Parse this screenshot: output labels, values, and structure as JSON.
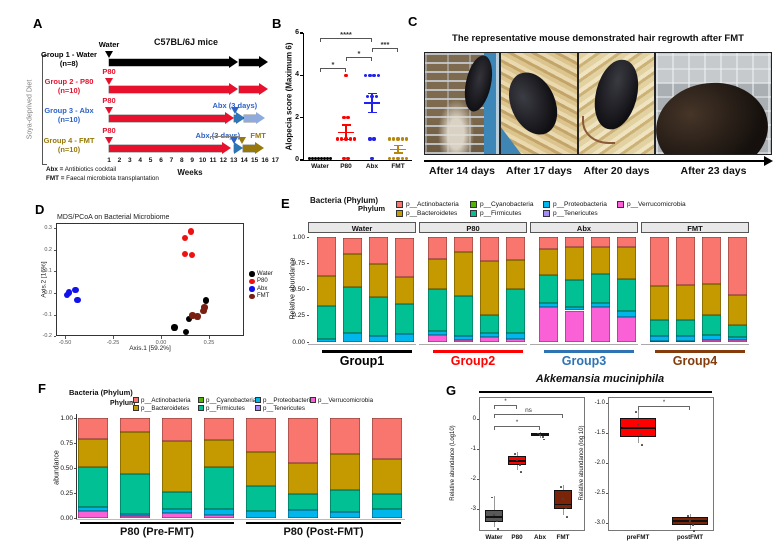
{
  "panels": {
    "A": {
      "label": "A",
      "side_label": "Soya-deprived Diet",
      "title": "C57BL/6J mice",
      "weeks_label": "Weeks",
      "weeks": [
        1,
        2,
        3,
        4,
        5,
        6,
        7,
        8,
        9,
        10,
        11,
        12,
        13,
        14,
        15,
        16,
        17
      ],
      "footnotes": [
        {
          "bold": "Abx =",
          "rest": " Antibiotics cocktail"
        },
        {
          "bold": "FMT =",
          "rest": " Faecal microbiota transplantation"
        }
      ],
      "groups": [
        {
          "name": "Group 1 - Water",
          "n": "(n=8)",
          "label_color": "#000000",
          "markers": [
            {
              "label": "Water",
              "color": "#000000",
              "week": 1,
              "label_dx": 0,
              "dy": -22
            }
          ],
          "arrows": [
            {
              "from": 1,
              "to": 13.2,
              "color": "#000000"
            },
            {
              "from": 13.5,
              "to": 16.1,
              "color": "#000000"
            }
          ]
        },
        {
          "name": "Group 2 - P80",
          "n": "(n=10)",
          "label_color": "#e8112d",
          "markers": [
            {
              "label": "P80",
              "color": "#e8112d",
              "week": 1,
              "label_dx": 0,
              "dy": -22
            }
          ],
          "arrows": [
            {
              "from": 1,
              "to": 13.2,
              "color": "#e8112d"
            },
            {
              "from": 13.5,
              "to": 16.1,
              "color": "#e8112d"
            }
          ]
        },
        {
          "name": "Group 3 - Abx",
          "n": "(n=10)",
          "label_color": "#2e63c6",
          "markers": [
            {
              "label": "P80",
              "color": "#e8112d",
              "week": 1,
              "label_dx": 0,
              "dy": -22
            },
            {
              "label": "Abx (3 days)",
              "color": "#2e63c6",
              "week": 13.1,
              "label_dx": 0,
              "dy": -17
            }
          ],
          "arrows": [
            {
              "from": 1,
              "to": 12.8,
              "color": "#e8112d"
            },
            {
              "from": 13.0,
              "to": 13.9,
              "color": "#2e75b6"
            },
            {
              "from": 14.0,
              "to": 15.8,
              "color": "#8faadc"
            }
          ]
        },
        {
          "name": "Group 4 - FMT",
          "n": "(n=10)",
          "label_color": "#97780a",
          "markers": [
            {
              "label": "P80",
              "color": "#e8112d",
              "week": 1,
              "label_dx": 0,
              "dy": -22
            },
            {
              "label": "Abx (3 days)",
              "color": "#2e63c6",
              "week": 13.0,
              "label_dx": -16,
              "dy": -17,
              "bracket": true
            },
            {
              "label": "FMT",
              "color": "#97780a",
              "week": 13.8,
              "label_dx": 16,
              "dy": -17
            }
          ],
          "arrows": [
            {
              "from": 1,
              "to": 12.5,
              "color": "#e8112d"
            },
            {
              "from": 13.0,
              "to": 13.7,
              "color": "#2e75b6"
            },
            {
              "from": 13.9,
              "to": 15.7,
              "color": "#97780a"
            }
          ]
        }
      ]
    },
    "B": {
      "label": "B"
    },
    "C": {
      "label": "C",
      "title": "The representative mouse demonstrated hair regrowth after FMT",
      "photos": [
        {
          "caption": "After 14 days"
        },
        {
          "caption": "After 17 days"
        },
        {
          "caption": "After 20 days"
        },
        {
          "caption": "After 23 days"
        }
      ]
    },
    "D": {
      "label": "D"
    },
    "E": {
      "label": "E",
      "title": "Bacteria (Phylum)"
    },
    "F": {
      "label": "F",
      "title": "Bacteria (Phylum)"
    },
    "G": {
      "label": "G"
    }
  },
  "chart_data": [
    {
      "panel": "B",
      "type": "scatter",
      "ylabel": "Alopecia score (Maximum 6)",
      "ylim": [
        0,
        6
      ],
      "yticks": [
        0,
        2,
        4,
        6
      ],
      "categories": [
        "Water",
        "P80",
        "Abx",
        "FMT"
      ],
      "colors": [
        "#000000",
        "#ff0000",
        "#2222ee",
        "#b8860b"
      ],
      "series": [
        {
          "name": "Water",
          "scores": [
            0,
            0,
            0,
            0,
            0,
            0,
            0,
            0
          ],
          "mean": 0.0,
          "sem": 0.0
        },
        {
          "name": "P80",
          "scores": [
            4,
            2,
            2,
            1,
            1,
            1,
            1,
            1,
            0,
            0
          ],
          "mean": 1.3,
          "sem": 0.35
        },
        {
          "name": "Abx",
          "scores": [
            4,
            4,
            4,
            4,
            3,
            3,
            3,
            1,
            1,
            0
          ],
          "mean": 2.7,
          "sem": 0.45
        },
        {
          "name": "FMT",
          "scores": [
            1,
            1,
            1,
            1,
            1,
            0,
            0,
            0,
            0,
            0
          ],
          "mean": 0.5,
          "sem": 0.17
        }
      ],
      "significance": [
        {
          "a": "Water",
          "b": "P80",
          "label": "*",
          "y": 4.35
        },
        {
          "a": "P80",
          "b": "Abx",
          "label": "*",
          "y": 4.85
        },
        {
          "a": "Abx",
          "b": "FMT",
          "label": "***",
          "y": 5.3
        },
        {
          "a": "Water",
          "b": "Abx",
          "label": "****",
          "y": 5.78
        }
      ]
    },
    {
      "panel": "D",
      "type": "scatter",
      "title": "MDS/PCoA on Bacterial Microbiome",
      "xlabel": "Axis.1   [59.2%]",
      "ylabel": "Axis.2   [16%]",
      "xticks": [
        -0.5,
        -0.25,
        0.0,
        0.25
      ],
      "yticks": [
        -0.2,
        -0.1,
        0.0,
        0.1,
        0.2,
        0.3
      ],
      "series": [
        {
          "name": "Water",
          "color": "#000000",
          "points": [
            [
              0.07,
              -0.16
            ],
            [
              0.13,
              -0.18
            ],
            [
              0.145,
              -0.12
            ],
            [
              0.235,
              -0.035
            ]
          ]
        },
        {
          "name": "P80",
          "color": "#ee1111",
          "points": [
            [
              0.125,
              0.255
            ],
            [
              0.155,
              0.285
            ],
            [
              0.125,
              0.18
            ],
            [
              0.16,
              0.175
            ]
          ]
        },
        {
          "name": "Abx",
          "color": "#1111ee",
          "points": [
            [
              -0.48,
              0.003
            ],
            [
              -0.49,
              -0.008
            ],
            [
              -0.445,
              0.015
            ],
            [
              -0.435,
              -0.032
            ]
          ]
        },
        {
          "name": "FMT",
          "color": "#7b1f13",
          "points": [
            [
              0.165,
              -0.105
            ],
            [
              0.19,
              -0.108
            ],
            [
              0.222,
              -0.082
            ],
            [
              0.227,
              -0.068
            ]
          ]
        }
      ]
    },
    {
      "panel": "E",
      "type": "stacked_bar",
      "title": "Bacteria (Phylum)",
      "legend_title": "Phylum",
      "ylabel": "Relative abundance",
      "yticks": [
        0.0,
        0.25,
        0.5,
        0.75,
        1.0
      ],
      "phyla": [
        {
          "name": "p__Actinobacteria",
          "color": "#F8766D"
        },
        {
          "name": "p__Bacteroidetes",
          "color": "#C49A00"
        },
        {
          "name": "p__Cyanobacteria",
          "color": "#53B400"
        },
        {
          "name": "p__Firmicutes",
          "color": "#00C094"
        },
        {
          "name": "p__Proteobacteria",
          "color": "#00B6EB"
        },
        {
          "name": "p__Tenericutes",
          "color": "#A58AFF"
        },
        {
          "name": "p__Verrucomicrobia",
          "color": "#FB61D7"
        }
      ],
      "stack_order": [
        "p__Verrucomicrobia",
        "p__Proteobacteria",
        "p__Firmicutes",
        "p__Bacteroidetes",
        "p__Actinobacteria"
      ],
      "facets": [
        {
          "name": "Water",
          "group": "Group1",
          "group_color": "#000000",
          "bars": [
            [
              0.0,
              0.025,
              0.32,
              0.28,
              0.375
            ],
            [
              0.0,
              0.085,
              0.44,
              0.31,
              0.155
            ],
            [
              0.0,
              0.055,
              0.37,
              0.315,
              0.26
            ],
            [
              0.0,
              0.075,
              0.29,
              0.255,
              0.37
            ]
          ]
        },
        {
          "name": "P80",
          "group": "Group2",
          "group_color": "#ff0000",
          "bars": [
            [
              0.07,
              0.035,
              0.4,
              0.29,
              0.205
            ],
            [
              0.015,
              0.045,
              0.38,
              0.415,
              0.145
            ],
            [
              0.045,
              0.04,
              0.17,
              0.52,
              0.225
            ],
            [
              0.03,
              0.055,
              0.42,
              0.28,
              0.215
            ]
          ]
        },
        {
          "name": "Abx",
          "group": "Group3",
          "group_color": "#2e74b5",
          "bars": [
            [
              0.335,
              0.035,
              0.27,
              0.245,
              0.115
            ],
            [
              0.3,
              0.035,
              0.255,
              0.315,
              0.095
            ],
            [
              0.335,
              0.04,
              0.275,
              0.255,
              0.095
            ],
            [
              0.235,
              0.06,
              0.305,
              0.305,
              0.095
            ]
          ]
        },
        {
          "name": "FMT",
          "group": "Group4",
          "group_color": "#843c0c",
          "bars": [
            [
              0.01,
              0.045,
              0.155,
              0.32,
              0.47
            ],
            [
              0.01,
              0.05,
              0.15,
              0.335,
              0.455
            ],
            [
              0.02,
              0.05,
              0.185,
              0.3,
              0.445
            ],
            [
              0.015,
              0.035,
              0.115,
              0.285,
              0.55
            ]
          ]
        }
      ]
    },
    {
      "panel": "F",
      "type": "stacked_bar",
      "title": "Bacteria (Phylum)",
      "legend_title": "Phylum",
      "ylabel": "abundance",
      "yticks": [
        0.0,
        0.25,
        0.5,
        0.75,
        1.0
      ],
      "phyla": [
        {
          "name": "p__Actinobacteria",
          "color": "#F8766D"
        },
        {
          "name": "p__Bacteroidetes",
          "color": "#C49A00"
        },
        {
          "name": "p__Cyanobacteria",
          "color": "#53B400"
        },
        {
          "name": "p__Firmicutes",
          "color": "#00C094"
        },
        {
          "name": "p__Proteobacteria",
          "color": "#00B6EB"
        },
        {
          "name": "p__Tenericutes",
          "color": "#A58AFF"
        },
        {
          "name": "p__Verrucomicrobia",
          "color": "#FB61D7"
        }
      ],
      "stack_order": [
        "p__Verrucomicrobia",
        "p__Proteobacteria",
        "p__Firmicutes",
        "p__Bacteroidetes",
        "p__Actinobacteria"
      ],
      "groups": [
        {
          "name": "P80 (Pre-FMT)",
          "bars": [
            [
              0.07,
              0.04,
              0.4,
              0.28,
              0.21
            ],
            [
              0.02,
              0.025,
              0.395,
              0.42,
              0.14
            ],
            [
              0.05,
              0.04,
              0.17,
              0.51,
              0.23
            ],
            [
              0.03,
              0.06,
              0.42,
              0.27,
              0.22
            ]
          ]
        },
        {
          "name": "P80 (Post-FMT)",
          "bars": [
            [
              0.0,
              0.075,
              0.245,
              0.34,
              0.34
            ],
            [
              0.0,
              0.08,
              0.16,
              0.31,
              0.45
            ],
            [
              0.0,
              0.06,
              0.225,
              0.355,
              0.36
            ],
            [
              0.0,
              0.09,
              0.155,
              0.345,
              0.41
            ]
          ]
        }
      ]
    },
    {
      "panel": "G",
      "type": "box",
      "title": "Akkemansia muciniphila",
      "plots": [
        {
          "ylabel": "Relative abundance (Log10)",
          "yticks": [
            0,
            -1,
            -2,
            -3
          ],
          "categories": [
            "Water",
            "P80",
            "Abx",
            "FMT"
          ],
          "boxes": [
            {
              "name": "Water",
              "color": "#595959",
              "lo": -3.6,
              "q1": -3.42,
              "median": -3.26,
              "q3": -3.03,
              "hi": -2.55
            },
            {
              "name": "P80",
              "color": "#ff0000",
              "lo": -1.7,
              "q1": -1.53,
              "median": -1.4,
              "q3": -1.23,
              "hi": -1.1
            },
            {
              "name": "Abx",
              "color": "#1414ff",
              "lo": -0.62,
              "q1": -0.57,
              "median": -0.51,
              "q3": -0.45,
              "hi": -0.42
            },
            {
              "name": "FMT",
              "color": "#7b2408",
              "lo": -3.2,
              "q1": -3.0,
              "median": -2.85,
              "q3": -2.37,
              "hi": -2.2
            }
          ],
          "significance": [
            {
              "a": "Water",
              "b": "P80",
              "label": "*"
            },
            {
              "a": "Water",
              "b": "FMT",
              "label": "ns"
            },
            {
              "a": "Water",
              "b": "Abx",
              "label": "*"
            }
          ]
        },
        {
          "ylabel": "Relative abundance (log 10)",
          "yticks": [
            -1.0,
            -1.5,
            -2.0,
            -2.5,
            -3.0
          ],
          "categories": [
            "preFMT",
            "postFMT"
          ],
          "boxes": [
            {
              "name": "preFMT",
              "color": "#ff0000",
              "lo": -1.67,
              "q1": -1.57,
              "median": -1.42,
              "q3": -1.25,
              "hi": -1.12
            },
            {
              "name": "postFMT",
              "color": "#7b2408",
              "lo": -3.1,
              "q1": -3.03,
              "median": -2.97,
              "q3": -2.9,
              "hi": -2.85
            }
          ],
          "significance": [
            {
              "a": "preFMT",
              "b": "postFMT",
              "label": "*"
            }
          ]
        }
      ]
    }
  ]
}
